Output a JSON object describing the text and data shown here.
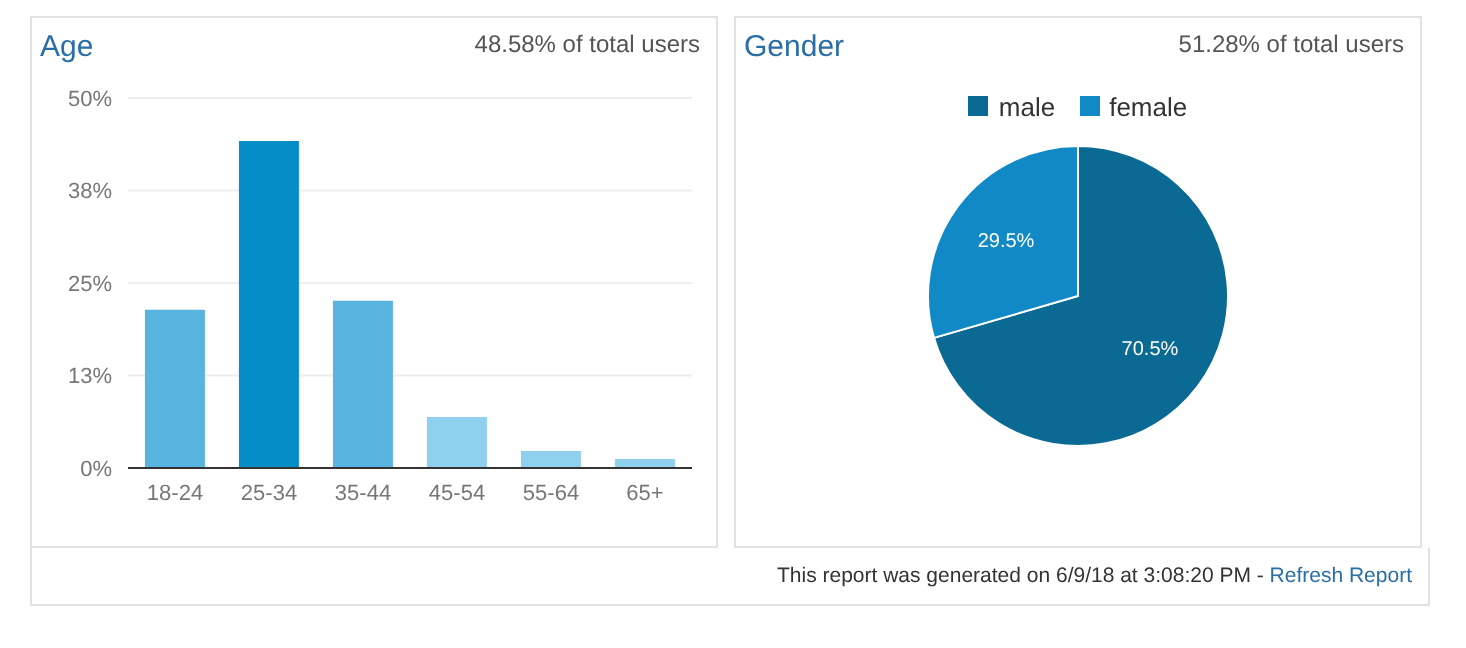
{
  "chart_data": [
    {
      "type": "bar",
      "title": "Age",
      "subtitle": "48.58% of total users",
      "categories": [
        "18-24",
        "25-34",
        "35-44",
        "45-54",
        "55-64",
        "65+"
      ],
      "values": [
        21.4,
        44.2,
        22.6,
        6.9,
        2.3,
        1.2
      ],
      "colors": [
        "#5ab4e0",
        "#058dc7",
        "#5ab4e0",
        "#8fd0ee",
        "#8fd0ee",
        "#8fd0ee"
      ],
      "ylim": [
        0,
        50
      ],
      "yticks": [
        {
          "value": 0,
          "label": "0%"
        },
        {
          "value": 12.5,
          "label": "13%"
        },
        {
          "value": 25,
          "label": "25%"
        },
        {
          "value": 37.5,
          "label": "38%"
        },
        {
          "value": 50,
          "label": "50%"
        }
      ],
      "grid": "y"
    },
    {
      "type": "pie",
      "title": "Gender",
      "subtitle": "51.28% of total users",
      "categories": [
        "male",
        "female"
      ],
      "values": [
        70.5,
        29.5
      ],
      "colors": [
        "#0b6a94",
        "#1289c7"
      ],
      "value_labels": [
        "70.5%",
        "29.5%"
      ],
      "legend": "top",
      "annotations": [
        "This report was generated on 6/9/18 at 3:08:20 PM - ",
        "Refresh Report"
      ]
    }
  ]
}
